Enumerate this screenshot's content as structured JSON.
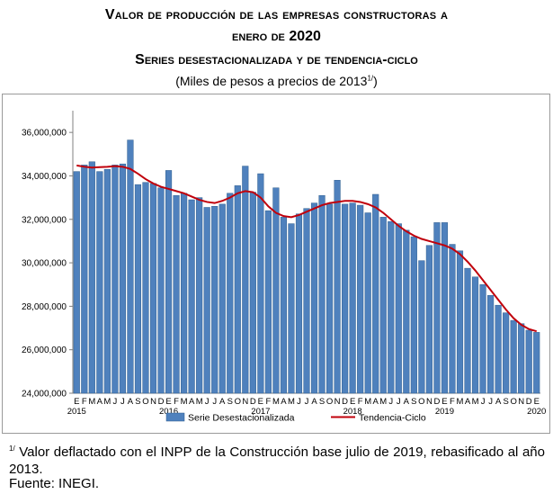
{
  "header": {
    "title_line1": "Valor de producción de las empresas constructoras a",
    "title_line2": "enero de 2020",
    "title_line3": "Series desestacionalizada y de tendencia-ciclo",
    "subtitle_prefix": "(Miles de pesos a precios de 2013",
    "subtitle_sup": "1/",
    "subtitle_suffix": ")"
  },
  "footnote": {
    "marker": "1/",
    "text": " Valor deflactado con el INPP de la Construcción base julio de 2019, rebasificado al año 2013.",
    "source": "Fuente: INEGI."
  },
  "colors": {
    "bar": "#4f81bd",
    "bar_edge": "#2f5e8f",
    "line": "#c0000b",
    "axis": "#808080"
  },
  "chart_data": {
    "type": "bar",
    "ylim": [
      24000000,
      37000000
    ],
    "yticks": [
      "24,000,000",
      "26,000,000",
      "28,000,000",
      "30,000,000",
      "32,000,000",
      "34,000,000",
      "36,000,000"
    ],
    "ytick_values": [
      24000000,
      26000000,
      28000000,
      30000000,
      32000000,
      34000000,
      36000000
    ],
    "month_labels": [
      "E",
      "F",
      "M",
      "A",
      "M",
      "J",
      "J",
      "A",
      "S",
      "O",
      "N",
      "D",
      "E",
      "F",
      "M",
      "A",
      "M",
      "J",
      "J",
      "A",
      "S",
      "O",
      "N",
      "D",
      "E",
      "F",
      "M",
      "A",
      "M",
      "J",
      "J",
      "A",
      "S",
      "O",
      "N",
      "D",
      "E",
      "F",
      "M",
      "A",
      "M",
      "J",
      "J",
      "A",
      "S",
      "O",
      "N",
      "D",
      "E",
      "F",
      "M",
      "A",
      "M",
      "J",
      "J",
      "A",
      "S",
      "O",
      "N",
      "D",
      "E"
    ],
    "year_labels": [
      {
        "label": "2015",
        "index": 0
      },
      {
        "label": "2016",
        "index": 12
      },
      {
        "label": "2017",
        "index": 24
      },
      {
        "label": "2018",
        "index": 36
      },
      {
        "label": "2019",
        "index": 48
      },
      {
        "label": "2020",
        "index": 60
      }
    ],
    "series": [
      {
        "name": "Serie Desestacionalizada",
        "kind": "bar",
        "values": [
          34200000,
          34500000,
          34650000,
          34200000,
          34300000,
          34500000,
          34550000,
          35650000,
          33600000,
          33700000,
          33650000,
          33450000,
          34250000,
          33100000,
          33200000,
          32900000,
          33000000,
          32550000,
          32600000,
          32700000,
          33200000,
          33550000,
          34450000,
          33250000,
          34100000,
          32400000,
          33450000,
          32100000,
          31800000,
          32250000,
          32500000,
          32750000,
          33100000,
          32700000,
          33800000,
          32700000,
          32750000,
          32650000,
          32300000,
          33150000,
          32100000,
          31900000,
          31800000,
          31500000,
          31200000,
          30100000,
          30800000,
          31850000,
          31850000,
          30850000,
          30550000,
          29750000,
          29350000,
          29000000,
          28500000,
          28050000,
          27700000,
          27350000,
          27200000,
          26900000,
          26800000
        ]
      },
      {
        "name": "Tendencia-Ciclo",
        "kind": "line",
        "values": [
          34480000,
          34420000,
          34380000,
          34400000,
          34420000,
          34450000,
          34420000,
          34320000,
          34100000,
          33850000,
          33650000,
          33500000,
          33400000,
          33300000,
          33200000,
          33050000,
          32900000,
          32800000,
          32750000,
          32850000,
          33000000,
          33200000,
          33300000,
          33250000,
          33000000,
          32600000,
          32300000,
          32150000,
          32100000,
          32200000,
          32350000,
          32500000,
          32650000,
          32750000,
          32800000,
          32850000,
          32850000,
          32800000,
          32700000,
          32550000,
          32300000,
          32000000,
          31700000,
          31450000,
          31250000,
          31100000,
          31000000,
          30900000,
          30800000,
          30650000,
          30400000,
          30050000,
          29650000,
          29200000,
          28750000,
          28300000,
          27850000,
          27450000,
          27150000,
          26950000,
          26850000
        ]
      }
    ],
    "legend": {
      "position": "bottom",
      "items": [
        "Serie Desestacionalizada",
        "Tendencia-Ciclo"
      ]
    },
    "grid": false
  }
}
